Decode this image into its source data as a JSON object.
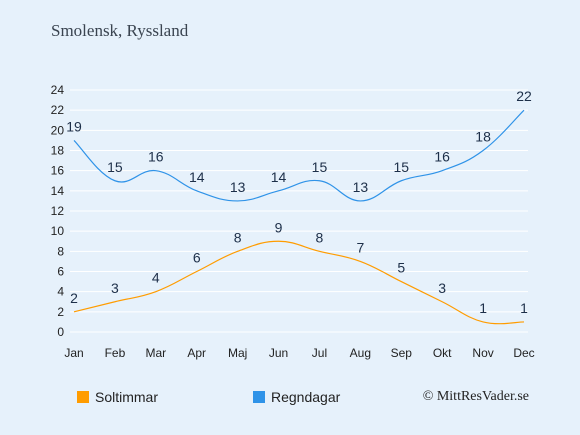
{
  "title": "Smolensk, Ryssland",
  "legend": {
    "sun_label": "Soltimmar",
    "rain_label": "Regndagar"
  },
  "copyright": "© MittResVader.se",
  "colors": {
    "sun": "#ff9c00",
    "rain": "#2f93e8",
    "background": "#e6f1fb",
    "grid": "#ffffff"
  },
  "chart_data": {
    "type": "line",
    "title": "Smolensk, Ryssland",
    "categories": [
      "Jan",
      "Feb",
      "Mar",
      "Apr",
      "Maj",
      "Jun",
      "Jul",
      "Aug",
      "Sep",
      "Okt",
      "Nov",
      "Dec"
    ],
    "series": [
      {
        "name": "Soltimmar",
        "color": "#ff9c00",
        "values": [
          2,
          3,
          4,
          6,
          8,
          9,
          8,
          7,
          5,
          3,
          1,
          1
        ]
      },
      {
        "name": "Regndagar",
        "color": "#2f93e8",
        "values": [
          19,
          15,
          16,
          14,
          13,
          14,
          15,
          13,
          15,
          16,
          18,
          22
        ]
      }
    ],
    "yticks": [
      0,
      2,
      4,
      6,
      8,
      10,
      12,
      14,
      16,
      18,
      20,
      22,
      24
    ],
    "ylim": [
      0,
      24
    ],
    "grid": true,
    "legend_position": "bottom-left",
    "data_labels": true
  }
}
